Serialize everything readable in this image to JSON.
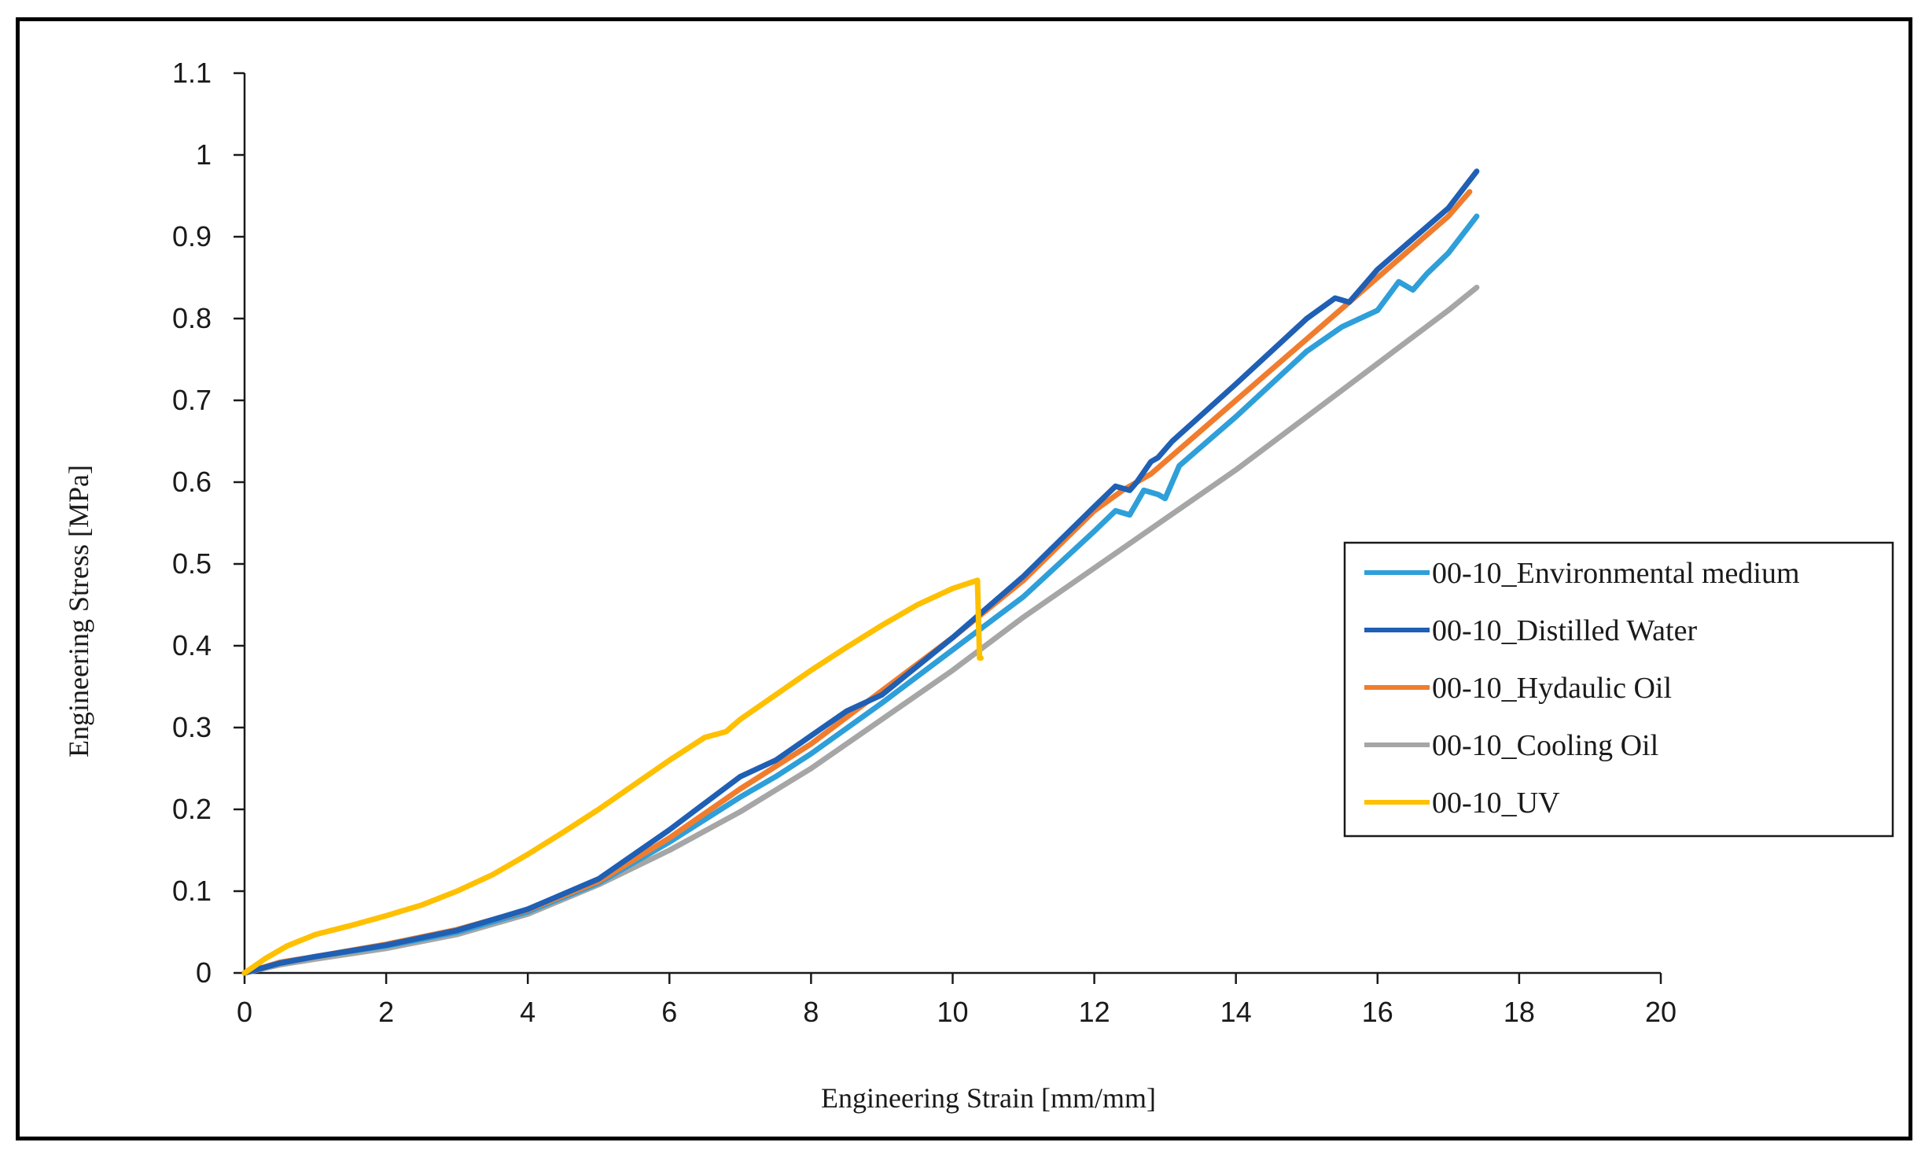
{
  "chart_data": {
    "type": "line",
    "title": "",
    "xlabel": "Engineering Strain [mm/mm]",
    "ylabel": "Engineering Stress  [MPa]",
    "xlim": [
      0,
      20
    ],
    "ylim": [
      0,
      1.1
    ],
    "xticks": [
      0,
      2,
      4,
      6,
      8,
      10,
      12,
      14,
      16,
      18,
      20
    ],
    "yticks": [
      0,
      0.1,
      0.2,
      0.3,
      0.4,
      0.5,
      0.6,
      0.7,
      0.8,
      0.9,
      1,
      1.1
    ],
    "xtick_labels": [
      "0",
      "2",
      "4",
      "6",
      "8",
      "10",
      "12",
      "14",
      "16",
      "18",
      "20"
    ],
    "ytick_labels": [
      "0",
      "0.1",
      "0.2",
      "0.3",
      "0.4",
      "0.5",
      "0.6",
      "0.7",
      "0.8",
      "0.9",
      "1",
      "1.1"
    ],
    "grid": false,
    "legend_position": "right",
    "series": [
      {
        "name": "00-10_Environmental medium",
        "color": "#2e9fd9",
        "x": [
          0,
          0.5,
          1,
          2,
          3,
          4,
          5,
          6,
          7,
          7.5,
          8,
          9,
          10,
          11,
          12,
          12.3,
          12.5,
          12.7,
          12.9,
          13.0,
          13.2,
          14,
          15,
          15.5,
          16,
          16.3,
          16.5,
          16.7,
          17,
          17.4
        ],
        "y": [
          0,
          0.012,
          0.02,
          0.033,
          0.05,
          0.075,
          0.11,
          0.16,
          0.215,
          0.24,
          0.268,
          0.33,
          0.395,
          0.46,
          0.54,
          0.565,
          0.56,
          0.59,
          0.585,
          0.58,
          0.62,
          0.68,
          0.76,
          0.79,
          0.81,
          0.845,
          0.835,
          0.855,
          0.88,
          0.925
        ]
      },
      {
        "name": "00-10_Distilled Water",
        "color": "#1f5fb4",
        "x": [
          0,
          0.5,
          1,
          2,
          3,
          4,
          5,
          6,
          7,
          7.5,
          8,
          8.5,
          9,
          10,
          11,
          12,
          12.3,
          12.5,
          12.6,
          12.8,
          12.9,
          13.1,
          14,
          15,
          15.4,
          15.6,
          16,
          17,
          17.4
        ],
        "y": [
          0,
          0.012,
          0.02,
          0.034,
          0.052,
          0.078,
          0.115,
          0.175,
          0.24,
          0.26,
          0.29,
          0.32,
          0.34,
          0.41,
          0.485,
          0.57,
          0.595,
          0.59,
          0.6,
          0.625,
          0.63,
          0.65,
          0.72,
          0.8,
          0.825,
          0.82,
          0.86,
          0.935,
          0.98
        ]
      },
      {
        "name": "00-10_Hydaulic Oil",
        "color": "#f07d2e",
        "x": [
          0,
          0.5,
          1,
          2,
          3,
          4,
          5,
          6,
          7,
          8,
          9,
          10,
          11,
          12,
          12.4,
          12.6,
          12.8,
          13.0,
          14,
          15,
          15.4,
          16,
          17,
          17.3
        ],
        "y": [
          0,
          0.013,
          0.02,
          0.035,
          0.053,
          0.077,
          0.112,
          0.165,
          0.225,
          0.28,
          0.345,
          0.41,
          0.48,
          0.565,
          0.59,
          0.6,
          0.61,
          0.625,
          0.7,
          0.775,
          0.805,
          0.85,
          0.925,
          0.955
        ]
      },
      {
        "name": "00-10_Cooling Oil",
        "color": "#a6a6a6",
        "x": [
          0,
          0.5,
          1,
          2,
          3,
          4,
          5,
          6,
          7,
          8,
          9,
          10,
          11,
          12,
          13,
          14,
          15,
          16,
          17,
          17.4
        ],
        "y": [
          0,
          0.01,
          0.017,
          0.03,
          0.047,
          0.072,
          0.108,
          0.15,
          0.197,
          0.25,
          0.31,
          0.37,
          0.435,
          0.495,
          0.555,
          0.615,
          0.68,
          0.745,
          0.81,
          0.838
        ]
      },
      {
        "name": "00-10_UV",
        "color": "#ffc000",
        "x": [
          0,
          0.3,
          0.6,
          1,
          1.5,
          2,
          2.5,
          3,
          3.5,
          4,
          4.5,
          5,
          5.5,
          6,
          6.5,
          6.8,
          7,
          7.5,
          8,
          8.5,
          9,
          9.5,
          10,
          10.35,
          10.38,
          10.4
        ],
        "y": [
          0,
          0.018,
          0.033,
          0.047,
          0.058,
          0.07,
          0.083,
          0.1,
          0.12,
          0.145,
          0.172,
          0.2,
          0.23,
          0.26,
          0.288,
          0.295,
          0.31,
          0.34,
          0.37,
          0.398,
          0.425,
          0.45,
          0.47,
          0.48,
          0.385,
          0.385
        ]
      }
    ]
  }
}
